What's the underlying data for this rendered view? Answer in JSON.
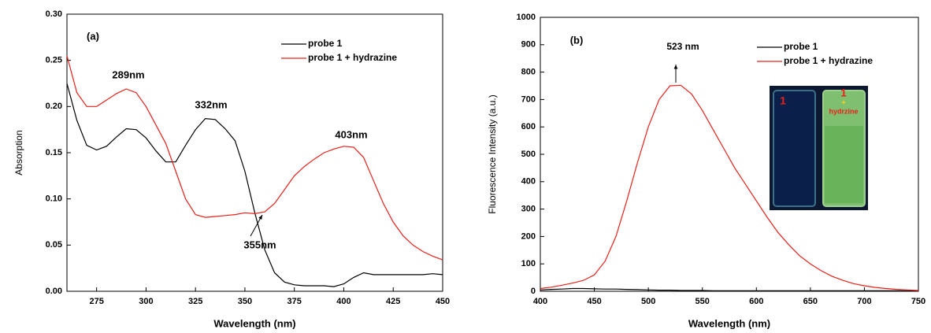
{
  "chart_data": [
    {
      "type": "line",
      "annotations": [
        "(a)",
        "289nm",
        "332nm",
        "403nm",
        "355nm"
      ],
      "x_label": "Wavelength (nm)",
      "y_label": "Absorption",
      "x": [
        260,
        265,
        270,
        275,
        280,
        285,
        290,
        295,
        300,
        305,
        310,
        315,
        320,
        325,
        330,
        335,
        340,
        345,
        350,
        355,
        360,
        365,
        370,
        375,
        380,
        385,
        390,
        395,
        400,
        405,
        410,
        415,
        420,
        425,
        430,
        435,
        440,
        445,
        450
      ],
      "series": [
        {
          "name": "probe 1",
          "color": "#000000",
          "values": [
            0.225,
            0.185,
            0.158,
            0.153,
            0.157,
            0.167,
            0.176,
            0.175,
            0.166,
            0.152,
            0.14,
            0.14,
            0.158,
            0.175,
            0.187,
            0.186,
            0.176,
            0.163,
            0.13,
            0.085,
            0.045,
            0.02,
            0.01,
            0.007,
            0.006,
            0.006,
            0.006,
            0.005,
            0.008,
            0.015,
            0.02,
            0.018,
            0.018,
            0.018,
            0.018,
            0.018,
            0.018,
            0.019,
            0.018
          ]
        },
        {
          "name": "probe 1 + hydrazine",
          "color": "#e8201a",
          "values": [
            0.255,
            0.215,
            0.2,
            0.2,
            0.207,
            0.214,
            0.219,
            0.215,
            0.2,
            0.18,
            0.16,
            0.13,
            0.1,
            0.083,
            0.08,
            0.081,
            0.082,
            0.083,
            0.085,
            0.084,
            0.086,
            0.095,
            0.11,
            0.125,
            0.135,
            0.143,
            0.15,
            0.154,
            0.157,
            0.156,
            0.145,
            0.12,
            0.095,
            0.075,
            0.06,
            0.05,
            0.043,
            0.038,
            0.034
          ]
        }
      ],
      "xlim": [
        260,
        450
      ],
      "xticks": [
        275,
        300,
        325,
        350,
        375,
        400,
        425,
        450
      ],
      "ylim": [
        0,
        0.3
      ],
      "yticks": [
        {
          "value": 0,
          "label": "0.00"
        },
        0.05,
        {
          "value": 0.1,
          "label": "0.10"
        },
        0.15,
        {
          "value": 0.2,
          "label": "0.20"
        },
        0.25,
        {
          "value": 0.3,
          "label": "0.30"
        }
      ],
      "legend": "upper right"
    },
    {
      "type": "line",
      "annotations": [
        "(b)",
        "523 nm",
        "1",
        "1",
        "+",
        "hydrzine"
      ],
      "x_label": "Wavelength (nm)",
      "y_label": "Fluorescence Intensity (a.u.)",
      "x": [
        400,
        410,
        420,
        430,
        440,
        450,
        460,
        470,
        480,
        490,
        500,
        510,
        520,
        530,
        540,
        550,
        560,
        570,
        580,
        590,
        600,
        610,
        620,
        630,
        640,
        650,
        660,
        670,
        680,
        690,
        700,
        710,
        720,
        730,
        740,
        750
      ],
      "series": [
        {
          "name": "probe 1",
          "color": "#000000",
          "values": [
            5,
            7,
            8,
            10,
            10,
            9,
            8,
            8,
            7,
            6,
            5,
            4,
            4,
            3,
            3,
            3,
            2,
            2,
            2,
            2,
            2,
            2,
            2,
            2,
            2,
            2,
            2,
            2,
            2,
            2,
            2,
            2,
            2,
            2,
            2,
            2
          ]
        },
        {
          "name": "probe 1 + hydrazine",
          "color": "#e8201a",
          "values": [
            10,
            15,
            22,
            30,
            40,
            60,
            110,
            200,
            330,
            470,
            600,
            700,
            750,
            752,
            720,
            660,
            590,
            520,
            450,
            390,
            330,
            270,
            215,
            170,
            130,
            100,
            75,
            55,
            40,
            28,
            20,
            14,
            10,
            7,
            5,
            3
          ]
        }
      ],
      "xlim": [
        400,
        750
      ],
      "xticks": [
        400,
        450,
        500,
        550,
        600,
        650,
        700,
        750
      ],
      "ylim": [
        0,
        1000
      ],
      "yticks": [
        0,
        100,
        200,
        300,
        400,
        500,
        600,
        700,
        800,
        900,
        1000
      ],
      "legend": "upper right"
    }
  ]
}
